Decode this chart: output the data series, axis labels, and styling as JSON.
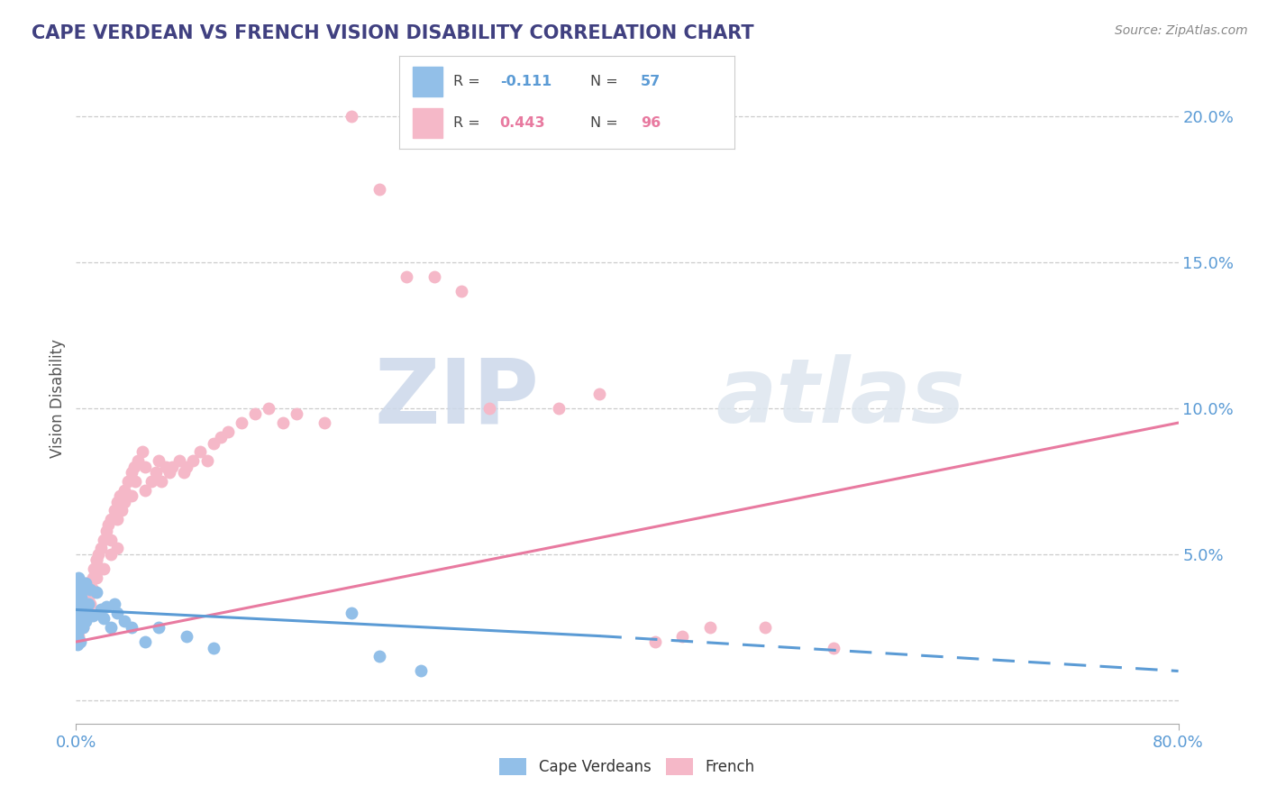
{
  "title": "CAPE VERDEAN VS FRENCH VISION DISABILITY CORRELATION CHART",
  "source": "Source: ZipAtlas.com",
  "ylabel": "Vision Disability",
  "xlim": [
    0.0,
    0.8
  ],
  "ylim": [
    -0.008,
    0.215
  ],
  "yticks": [
    0.0,
    0.05,
    0.1,
    0.15,
    0.2
  ],
  "ytick_labels": [
    "",
    "5.0%",
    "10.0%",
    "15.0%",
    "20.0%"
  ],
  "legend_label1": "Cape Verdeans",
  "legend_label2": "French",
  "color_blue": "#92bfe8",
  "color_pink": "#f5b8c8",
  "color_blue_line": "#5b9bd5",
  "color_pink_line": "#e87aa0",
  "background_color": "#ffffff",
  "watermark_zip": "ZIP",
  "watermark_atlas": "atlas",
  "title_color": "#404080",
  "axis_label_color": "#5b9bd5",
  "ylabel_color": "#555555",
  "source_color": "#888888",
  "cv_line_start_x": 0.0,
  "cv_line_start_y": 0.031,
  "cv_line_solid_end_x": 0.38,
  "cv_line_solid_end_y": 0.022,
  "cv_line_dash_end_x": 0.8,
  "cv_line_dash_end_y": 0.01,
  "fr_line_start_x": 0.0,
  "fr_line_start_y": 0.02,
  "fr_line_end_x": 0.8,
  "fr_line_end_y": 0.095,
  "cape_verdean_x": [
    0.001,
    0.001,
    0.001,
    0.001,
    0.001,
    0.001,
    0.001,
    0.001,
    0.001,
    0.001,
    0.002,
    0.002,
    0.002,
    0.002,
    0.002,
    0.002,
    0.002,
    0.002,
    0.002,
    0.003,
    0.003,
    0.003,
    0.003,
    0.003,
    0.003,
    0.004,
    0.004,
    0.004,
    0.004,
    0.005,
    0.005,
    0.005,
    0.006,
    0.006,
    0.007,
    0.007,
    0.008,
    0.009,
    0.01,
    0.012,
    0.015,
    0.018,
    0.02,
    0.022,
    0.025,
    0.028,
    0.03,
    0.035,
    0.04,
    0.05,
    0.06,
    0.08,
    0.1,
    0.2,
    0.22,
    0.25
  ],
  "cape_verdean_y": [
    0.03,
    0.025,
    0.035,
    0.028,
    0.032,
    0.022,
    0.038,
    0.027,
    0.019,
    0.033,
    0.04,
    0.029,
    0.031,
    0.036,
    0.024,
    0.042,
    0.026,
    0.034,
    0.028,
    0.037,
    0.03,
    0.025,
    0.033,
    0.02,
    0.028,
    0.039,
    0.032,
    0.027,
    0.035,
    0.038,
    0.03,
    0.025,
    0.028,
    0.033,
    0.04,
    0.027,
    0.03,
    0.033,
    0.038,
    0.029,
    0.037,
    0.031,
    0.028,
    0.032,
    0.025,
    0.033,
    0.03,
    0.027,
    0.025,
    0.02,
    0.025,
    0.022,
    0.018,
    0.03,
    0.015,
    0.01
  ],
  "french_x": [
    0.001,
    0.001,
    0.002,
    0.002,
    0.002,
    0.003,
    0.003,
    0.003,
    0.004,
    0.004,
    0.005,
    0.005,
    0.005,
    0.006,
    0.006,
    0.007,
    0.007,
    0.008,
    0.008,
    0.009,
    0.01,
    0.01,
    0.012,
    0.012,
    0.013,
    0.015,
    0.015,
    0.016,
    0.018,
    0.018,
    0.02,
    0.022,
    0.023,
    0.025,
    0.025,
    0.028,
    0.03,
    0.03,
    0.032,
    0.033,
    0.035,
    0.035,
    0.038,
    0.04,
    0.04,
    0.042,
    0.043,
    0.045,
    0.048,
    0.05,
    0.05,
    0.055,
    0.058,
    0.06,
    0.062,
    0.065,
    0.068,
    0.07,
    0.075,
    0.078,
    0.08,
    0.085,
    0.09,
    0.095,
    0.1,
    0.105,
    0.11,
    0.12,
    0.13,
    0.14,
    0.15,
    0.16,
    0.18,
    0.2,
    0.22,
    0.24,
    0.26,
    0.28,
    0.3,
    0.35,
    0.38,
    0.42,
    0.44,
    0.46,
    0.5,
    0.55,
    0.001,
    0.002,
    0.003,
    0.005,
    0.008,
    0.01,
    0.015,
    0.02,
    0.025,
    0.03
  ],
  "french_y": [
    0.03,
    0.025,
    0.028,
    0.032,
    0.022,
    0.03,
    0.035,
    0.025,
    0.033,
    0.028,
    0.035,
    0.03,
    0.025,
    0.038,
    0.032,
    0.04,
    0.033,
    0.038,
    0.03,
    0.035,
    0.04,
    0.033,
    0.042,
    0.038,
    0.045,
    0.048,
    0.042,
    0.05,
    0.052,
    0.045,
    0.055,
    0.058,
    0.06,
    0.062,
    0.055,
    0.065,
    0.068,
    0.062,
    0.07,
    0.065,
    0.072,
    0.068,
    0.075,
    0.078,
    0.07,
    0.08,
    0.075,
    0.082,
    0.085,
    0.08,
    0.072,
    0.075,
    0.078,
    0.082,
    0.075,
    0.08,
    0.078,
    0.08,
    0.082,
    0.078,
    0.08,
    0.082,
    0.085,
    0.082,
    0.088,
    0.09,
    0.092,
    0.095,
    0.098,
    0.1,
    0.095,
    0.098,
    0.095,
    0.2,
    0.175,
    0.145,
    0.145,
    0.14,
    0.1,
    0.1,
    0.105,
    0.02,
    0.022,
    0.025,
    0.025,
    0.018,
    0.028,
    0.03,
    0.033,
    0.035,
    0.038,
    0.04,
    0.048,
    0.045,
    0.05,
    0.052
  ]
}
